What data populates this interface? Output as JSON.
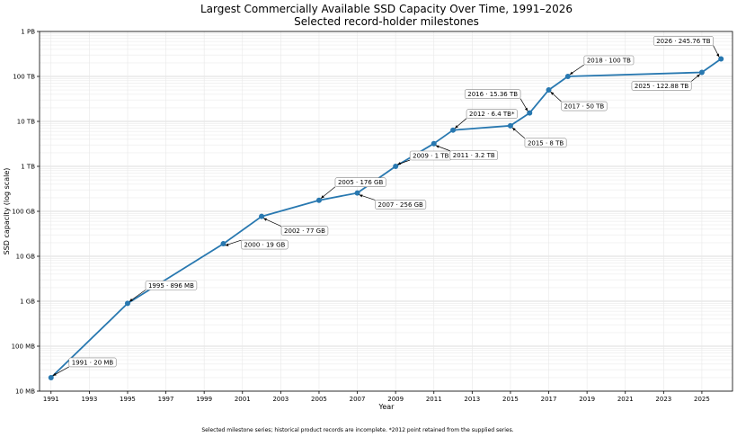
{
  "chart_data": {
    "type": "line",
    "title": "Largest Commercially Available SSD Capacity Over Time, 1991–2026",
    "subtitle": "Selected record-holder milestones",
    "xlabel": "Year",
    "ylabel": "SSD capacity (log scale)",
    "xlim": [
      1990.4,
      2026.6
    ],
    "ylim_gb": [
      0.01,
      1000000
    ],
    "yscale": "log",
    "x_ticks": [
      "1991",
      "1993",
      "1995",
      "1997",
      "1999",
      "2001",
      "2003",
      "2005",
      "2007",
      "2009",
      "2011",
      "2013",
      "2015",
      "2017",
      "2019",
      "2021",
      "2023",
      "2025"
    ],
    "y_ticks": [
      {
        "value_gb": 0.01,
        "label": "10 MB"
      },
      {
        "value_gb": 0.1,
        "label": "100 MB"
      },
      {
        "value_gb": 1,
        "label": "1 GB"
      },
      {
        "value_gb": 10,
        "label": "10 GB"
      },
      {
        "value_gb": 100,
        "label": "100 GB"
      },
      {
        "value_gb": 1000,
        "label": "1 TB"
      },
      {
        "value_gb": 10000,
        "label": "10 TB"
      },
      {
        "value_gb": 100000,
        "label": "100 TB"
      },
      {
        "value_gb": 1000000,
        "label": "1 PB"
      }
    ],
    "grid": true,
    "line_color": "#2878b0",
    "series": [
      {
        "points": [
          {
            "year": 1991,
            "capacity_gb": 0.02,
            "label": "1991 · 20 MB"
          },
          {
            "year": 1995,
            "capacity_gb": 0.896,
            "label": "1995 · 896 MB"
          },
          {
            "year": 2000,
            "capacity_gb": 19,
            "label": "2000 · 19 GB"
          },
          {
            "year": 2002,
            "capacity_gb": 77,
            "label": "2002 · 77 GB"
          },
          {
            "year": 2005,
            "capacity_gb": 176,
            "label": "2005 · 176 GB"
          },
          {
            "year": 2007,
            "capacity_gb": 256,
            "label": "2007 · 256 GB"
          },
          {
            "year": 2009,
            "capacity_gb": 1000,
            "label": "2009 · 1 TB"
          },
          {
            "year": 2011,
            "capacity_gb": 3200,
            "label": "2011 · 3.2 TB"
          },
          {
            "year": 2012,
            "capacity_gb": 6400,
            "label": "2012 · 6.4 TB*"
          },
          {
            "year": 2015,
            "capacity_gb": 8000,
            "label": "2015 · 8 TB"
          },
          {
            "year": 2016,
            "capacity_gb": 15360,
            "label": "2016 · 15.36 TB"
          },
          {
            "year": 2017,
            "capacity_gb": 50000,
            "label": "2017 · 50 TB"
          },
          {
            "year": 2018,
            "capacity_gb": 100000,
            "label": "2018 · 100 TB"
          },
          {
            "year": 2025,
            "capacity_gb": 122880,
            "label": "2025 · 122.88 TB"
          },
          {
            "year": 2026,
            "capacity_gb": 245760,
            "label": "2026 · 245.76 TB"
          }
        ]
      }
    ],
    "footnote": "Selected milestone series; historical product records are incomplete. *2012 point retained from the supplied series."
  }
}
